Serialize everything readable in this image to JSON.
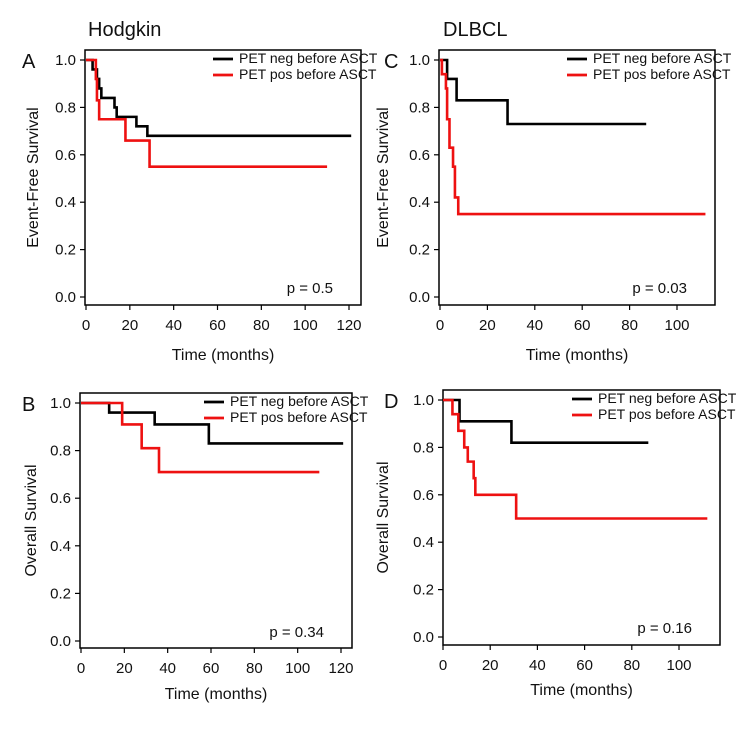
{
  "group_titles": {
    "left": "Hodgkin",
    "right": "DLBCL"
  },
  "colors": {
    "neg": "#000000",
    "pos": "#ee1111"
  },
  "chart_data": [
    {
      "id": "A",
      "type": "line",
      "subtype": "kaplan-meier-step",
      "group": "Hodgkin",
      "panel_letter": "A",
      "xlabel": "Time (months)",
      "ylabel": "Event-Free Survival",
      "xlim": [
        0,
        120
      ],
      "ylim": [
        0,
        1.0
      ],
      "xticks": [
        0,
        20,
        40,
        60,
        80,
        100,
        120
      ],
      "yticks": [
        0.0,
        0.2,
        0.4,
        0.6,
        0.8,
        1.0
      ],
      "ytick_labels": [
        "0.0",
        "0.2",
        "0.4",
        "0.6",
        "0.8",
        "1.0"
      ],
      "legend_position": "top-right",
      "annotation": "p = 0.5",
      "series": [
        {
          "name": "PET neg before ASCT",
          "color_key": "neg",
          "steps": [
            [
              0,
              1.0
            ],
            [
              3,
              0.96
            ],
            [
              5,
              0.92
            ],
            [
              6,
              0.88
            ],
            [
              7,
              0.84
            ],
            [
              13,
              0.8
            ],
            [
              14,
              0.76
            ],
            [
              23,
              0.72
            ],
            [
              28,
              0.68
            ]
          ],
          "end": 121
        },
        {
          "name": "PET pos before ASCT",
          "color_key": "pos",
          "steps": [
            [
              0,
              1.0
            ],
            [
              4.5,
              0.92
            ],
            [
              5,
              0.83
            ],
            [
              6,
              0.75
            ],
            [
              18,
              0.66
            ],
            [
              29,
              0.55
            ]
          ],
          "end": 110
        }
      ]
    },
    {
      "id": "C",
      "type": "line",
      "subtype": "kaplan-meier-step",
      "group": "DLBCL",
      "panel_letter": "C",
      "xlabel": "Time (months)",
      "ylabel": "Event-Free Survival",
      "xlim": [
        0,
        115
      ],
      "ylim": [
        0,
        1.0
      ],
      "xticks": [
        0,
        20,
        40,
        60,
        80,
        100
      ],
      "yticks": [
        0.0,
        0.2,
        0.4,
        0.6,
        0.8,
        1.0
      ],
      "ytick_labels": [
        "0.0",
        "0.2",
        "0.4",
        "0.6",
        "0.8",
        "1.0"
      ],
      "legend_position": "top-right",
      "annotation": "p = 0.03",
      "series": [
        {
          "name": "PET neg before ASCT",
          "color_key": "neg",
          "steps": [
            [
              0,
              1.0
            ],
            [
              3,
              0.92
            ],
            [
              7,
              0.83
            ],
            [
              28.5,
              0.73
            ]
          ],
          "end": 87
        },
        {
          "name": "PET pos before ASCT",
          "color_key": "pos",
          "steps": [
            [
              0,
              1.0
            ],
            [
              0.8,
              0.94
            ],
            [
              2.5,
              0.88
            ],
            [
              3,
              0.75
            ],
            [
              4,
              0.63
            ],
            [
              5.5,
              0.55
            ],
            [
              6.3,
              0.42
            ],
            [
              7.7,
              0.35
            ]
          ],
          "end": 112
        }
      ]
    },
    {
      "id": "B",
      "type": "line",
      "subtype": "kaplan-meier-step",
      "group": "Hodgkin",
      "panel_letter": "B",
      "xlabel": "Time (months)",
      "ylabel": "Overall Survival",
      "xlim": [
        0,
        125
      ],
      "ylim": [
        0,
        1.0
      ],
      "xticks": [
        0,
        20,
        40,
        60,
        80,
        100,
        120
      ],
      "yticks": [
        0.0,
        0.2,
        0.4,
        0.6,
        0.8,
        1.0
      ],
      "ytick_labels": [
        "0.0",
        "0.2",
        "0.4",
        "0.6",
        "0.8",
        "1.0"
      ],
      "legend_position": "top-right",
      "annotation": "p = 0.34",
      "series": [
        {
          "name": "PET neg before ASCT",
          "color_key": "neg",
          "steps": [
            [
              0,
              1.0
            ],
            [
              13,
              0.96
            ],
            [
              34,
              0.91
            ],
            [
              59,
              0.83
            ]
          ],
          "end": 121
        },
        {
          "name": "PET pos before ASCT",
          "color_key": "pos",
          "steps": [
            [
              0,
              1.0
            ],
            [
              19,
              0.91
            ],
            [
              28,
              0.81
            ],
            [
              36,
              0.71
            ]
          ],
          "end": 110
        }
      ]
    },
    {
      "id": "D",
      "type": "line",
      "subtype": "kaplan-meier-step",
      "group": "DLBCL",
      "panel_letter": "D",
      "xlabel": "Time (months)",
      "ylabel": "Overall Survival",
      "xlim": [
        0,
        117
      ],
      "ylim": [
        0,
        1.0
      ],
      "xticks": [
        0,
        20,
        40,
        60,
        80,
        100
      ],
      "yticks": [
        0.0,
        0.2,
        0.4,
        0.6,
        0.8,
        1.0
      ],
      "ytick_labels": [
        "0.0",
        "0.2",
        "0.4",
        "0.6",
        "0.8",
        "1.0"
      ],
      "legend_position": "top-right",
      "annotation": "p = 0.16",
      "series": [
        {
          "name": "PET neg before ASCT",
          "color_key": "neg",
          "steps": [
            [
              0,
              1.0
            ],
            [
              7,
              0.91
            ],
            [
              29,
              0.82
            ]
          ],
          "end": 87
        },
        {
          "name": "PET pos before ASCT",
          "color_key": "pos",
          "steps": [
            [
              0,
              1.0
            ],
            [
              4,
              0.94
            ],
            [
              6.5,
              0.87
            ],
            [
              9,
              0.8
            ],
            [
              10.5,
              0.74
            ],
            [
              13,
              0.67
            ],
            [
              13.7,
              0.6
            ],
            [
              31,
              0.5
            ]
          ],
          "end": 112
        }
      ]
    }
  ]
}
